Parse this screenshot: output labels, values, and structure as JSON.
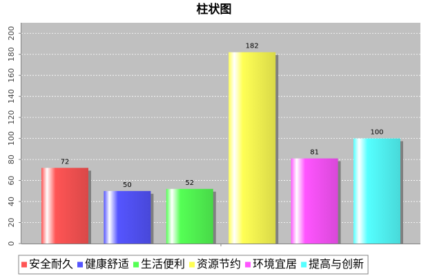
{
  "chart_data": {
    "type": "bar",
    "title": "柱状图",
    "categories": [
      null
    ],
    "series": [
      {
        "name": "安全耐久",
        "color": "#ff5555",
        "values": [
          72
        ]
      },
      {
        "name": "健康舒适",
        "color": "#5555ff",
        "values": [
          50
        ]
      },
      {
        "name": "生活便利",
        "color": "#55ff55",
        "values": [
          52
        ]
      },
      {
        "name": "资源节约",
        "color": "#ffff55",
        "values": [
          182
        ]
      },
      {
        "name": "环境宜居",
        "color": "#ff55ff",
        "values": [
          81
        ]
      },
      {
        "name": "提高与创新",
        "color": "#55ffff",
        "values": [
          100
        ]
      }
    ],
    "ylim": [
      0,
      210
    ],
    "yticks": [
      0,
      20,
      40,
      60,
      80,
      100,
      120,
      140,
      160,
      180,
      200
    ],
    "grid": true,
    "legend": "bottom"
  }
}
